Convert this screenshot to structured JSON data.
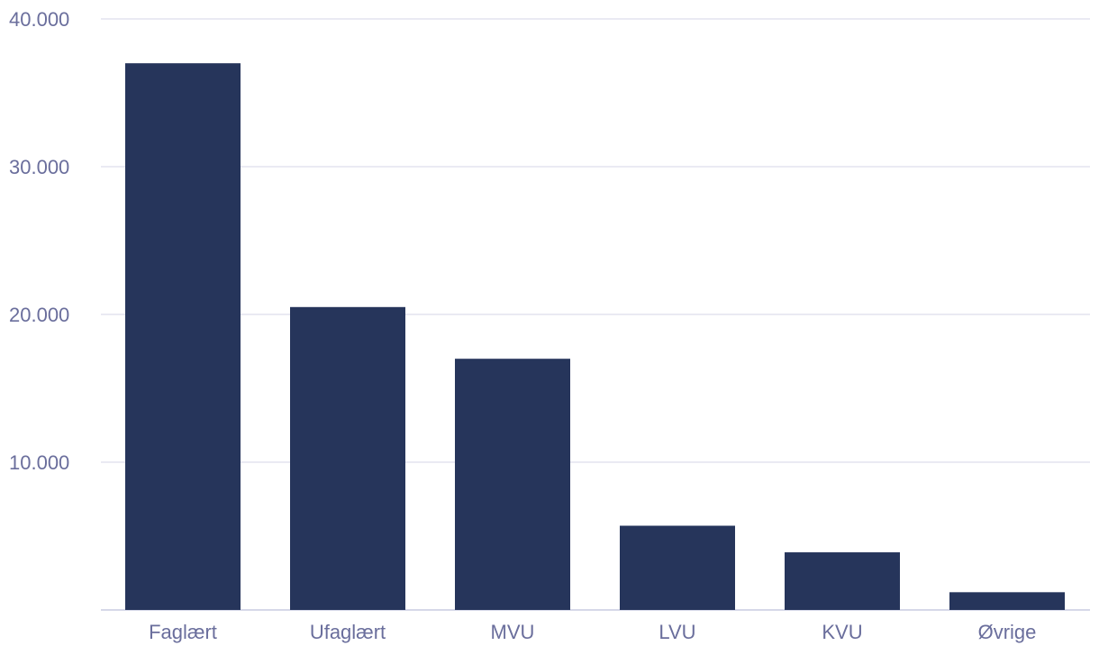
{
  "chart_data": {
    "type": "bar",
    "title": "",
    "xlabel": "",
    "ylabel": "",
    "categories": [
      "Faglært",
      "Ufaglært",
      "MVU",
      "LVU",
      "KVU",
      "Øvrige"
    ],
    "values": [
      37000,
      20500,
      17000,
      5700,
      3900,
      1200
    ],
    "ylim": [
      0,
      40000
    ],
    "yticks": [
      10000,
      20000,
      30000,
      40000
    ],
    "ytick_labels": [
      "10.000",
      "20.000",
      "30.000",
      "40.000"
    ],
    "grid": true,
    "legend": "none"
  },
  "colors": {
    "bar": "#26355b",
    "grid": "#e3e3ef",
    "tick_text": "#6a6e9c",
    "axis_line": "#c9cbe0"
  }
}
